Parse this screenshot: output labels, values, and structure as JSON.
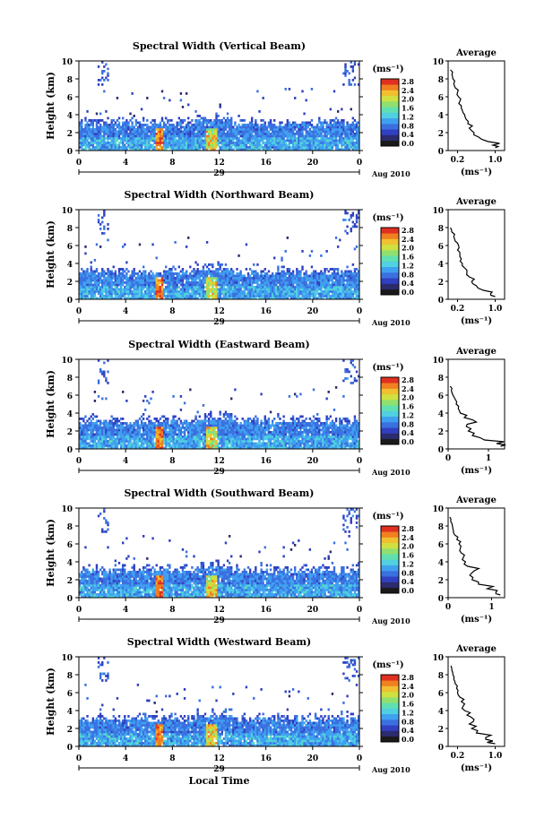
{
  "colors": {
    "colorbar": [
      "#1a1a1a",
      "#2b2b6e",
      "#3040c0",
      "#3a70e0",
      "#40a0f0",
      "#50d0e0",
      "#60e0b0",
      "#90e070",
      "#d0e040",
      "#f0c030",
      "#f08020",
      "#e03020"
    ]
  },
  "common": {
    "x_ticks": [
      "0",
      "4",
      "8",
      "12",
      "16",
      "20",
      "0"
    ],
    "y_ticks": [
      "0",
      "2",
      "4",
      "6",
      "8",
      "10"
    ],
    "ylabel": "Height (km)",
    "date_day": "29",
    "date_label": "Aug 2010",
    "cb_unit": "(ms⁻¹)",
    "cb_ticks": [
      "2.8",
      "2.4",
      "2.0",
      "1.6",
      "1.2",
      "0.8",
      "0.4",
      "0.0"
    ],
    "avg_title": "Average",
    "avg_xlabel": "(ms⁻¹)",
    "avg_y_ticks": [
      "0",
      "2",
      "4",
      "6",
      "8",
      "10"
    ],
    "local_time": "Local Time"
  },
  "chart_data": [
    {
      "type": "heatmap",
      "title": "Spectral Width (Vertical Beam)",
      "xlabel": "",
      "ylabel": "Height (km)",
      "xlim": [
        0,
        24
      ],
      "ylim": [
        0,
        10
      ],
      "clim": [
        0.0,
        2.8
      ],
      "grid": false,
      "average_profile": {
        "x_ticks": [
          "0.2",
          "1.0"
        ],
        "xlim": [
          0.0,
          1.2
        ],
        "height": [
          0.3,
          0.6,
          1.0,
          1.5,
          2.0,
          2.5,
          3.0,
          3.5,
          4.0,
          4.5,
          5.0,
          5.5,
          6.0,
          6.5,
          7.0,
          7.5,
          8.0,
          8.5,
          9.0
        ],
        "width": [
          1.0,
          0.95,
          0.85,
          0.65,
          0.55,
          0.45,
          0.42,
          0.38,
          0.35,
          0.3,
          0.28,
          0.25,
          0.22,
          0.2,
          0.15,
          0.12,
          0.1,
          0.08,
          0.05
        ]
      }
    },
    {
      "type": "heatmap",
      "title": "Spectral Width (Northward Beam)",
      "xlabel": "",
      "ylabel": "Height (km)",
      "xlim": [
        0,
        24
      ],
      "ylim": [
        0,
        10
      ],
      "clim": [
        0.0,
        2.8
      ],
      "grid": false,
      "average_profile": {
        "x_ticks": [
          "0.2",
          "1.0"
        ],
        "xlim": [
          0.0,
          1.2
        ],
        "height": [
          0.3,
          0.6,
          1.0,
          1.5,
          2.0,
          2.5,
          3.0,
          3.5,
          4.0,
          4.5,
          5.0,
          5.5,
          6.0,
          6.5,
          7.0,
          7.5,
          8.0
        ],
        "width": [
          1.0,
          0.9,
          0.75,
          0.6,
          0.5,
          0.45,
          0.4,
          0.35,
          0.3,
          0.28,
          0.25,
          0.2,
          0.22,
          0.15,
          0.12,
          0.08,
          0.05
        ]
      }
    },
    {
      "type": "heatmap",
      "title": "Spectral Width (Eastward Beam)",
      "xlabel": "",
      "ylabel": "Height (km)",
      "xlim": [
        0,
        24
      ],
      "ylim": [
        0,
        10
      ],
      "clim": [
        0.0,
        2.8
      ],
      "grid": false,
      "average_profile": {
        "x_ticks": [
          "0",
          "1"
        ],
        "xlim": [
          0.0,
          1.4
        ],
        "height": [
          0.3,
          0.6,
          1.0,
          1.5,
          2.0,
          2.5,
          3.0,
          3.5,
          4.0,
          4.5,
          5.0,
          5.5,
          6.0,
          6.5,
          7.0
        ],
        "width": [
          1.3,
          1.2,
          0.9,
          0.6,
          0.5,
          0.45,
          0.7,
          0.4,
          0.3,
          0.25,
          0.2,
          0.18,
          0.12,
          0.08,
          0.05
        ]
      }
    },
    {
      "type": "heatmap",
      "title": "Spectral Width (Southward Beam)",
      "xlabel": "",
      "ylabel": "Height (km)",
      "xlim": [
        0,
        24
      ],
      "ylim": [
        0,
        10
      ],
      "clim": [
        0.0,
        2.8
      ],
      "grid": false,
      "average_profile": {
        "x_ticks": [
          "0",
          "1"
        ],
        "xlim": [
          0.0,
          1.3
        ],
        "height": [
          0.3,
          0.6,
          1.0,
          1.5,
          2.0,
          2.5,
          3.0,
          3.5,
          4.0,
          4.5,
          5.0,
          5.5,
          6.0,
          6.5,
          7.0,
          7.5,
          8.0,
          8.5,
          9.0
        ],
        "width": [
          1.2,
          1.1,
          0.9,
          0.7,
          0.55,
          0.5,
          0.6,
          0.45,
          0.4,
          0.35,
          0.3,
          0.28,
          0.25,
          0.2,
          0.15,
          0.12,
          0.1,
          0.06,
          0.04
        ]
      }
    },
    {
      "type": "heatmap",
      "title": "Spectral Width (Westward Beam)",
      "xlabel": "Local Time",
      "ylabel": "Height (km)",
      "xlim": [
        0,
        24
      ],
      "ylim": [
        0,
        10
      ],
      "clim": [
        0.0,
        2.8
      ],
      "grid": false,
      "average_profile": {
        "x_ticks": [
          "0.2",
          "1.0"
        ],
        "xlim": [
          0.0,
          1.2
        ],
        "height": [
          0.3,
          0.6,
          1.0,
          1.5,
          2.0,
          2.5,
          3.0,
          3.5,
          4.0,
          4.5,
          5.0,
          5.5,
          6.0,
          6.5,
          7.0,
          7.5,
          8.0,
          8.5,
          9.0
        ],
        "width": [
          1.0,
          0.95,
          0.8,
          0.6,
          0.5,
          0.45,
          0.55,
          0.4,
          0.35,
          0.32,
          0.28,
          0.25,
          0.2,
          0.18,
          0.15,
          0.12,
          0.1,
          0.08,
          0.06
        ]
      }
    }
  ]
}
